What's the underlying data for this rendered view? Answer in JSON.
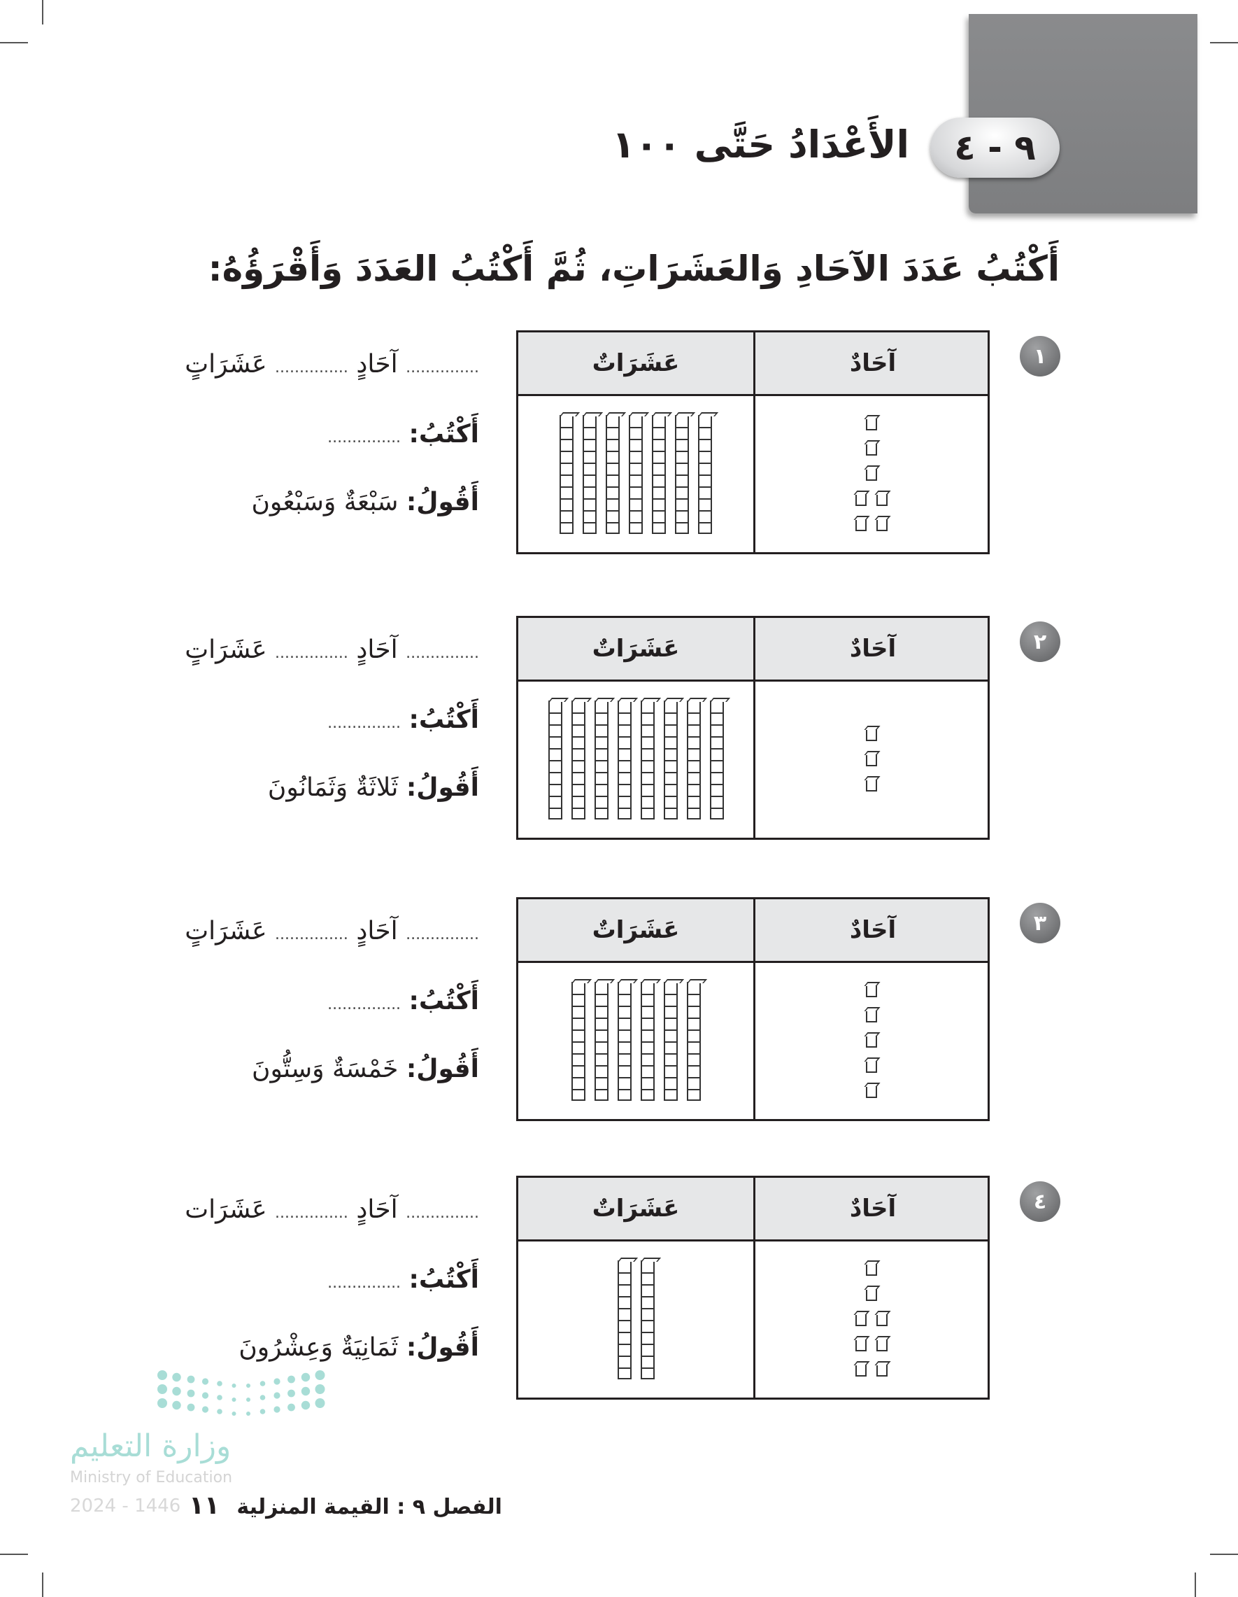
{
  "lesson": {
    "number": "٩ - ٤",
    "title": "الأَعْدَادُ حَتَّى ١٠٠"
  },
  "instruction": "أَكْتُبُ عَدَدَ الآحَادِ وَالعَشَرَاتِ، ثُمَّ أَكْتُبُ العَدَدَ وَأَقْرَؤُهُ:",
  "table_headers": {
    "ones": "آحَادٌ",
    "tens": "عَشَرَاتٌ"
  },
  "labels": {
    "ones": "آحَادٍ",
    "tens": "عَشَرَاتٍ",
    "tens_plain": "عَشَرَات",
    "write": "أَكْتُبُ:",
    "read": "أَقُولُ:",
    "blank": "..............."
  },
  "exercises": [
    {
      "number": "١",
      "tens": 7,
      "ones": 7,
      "read_text": "سَبْعَةٌ وَسَبْعُونَ"
    },
    {
      "number": "٢",
      "tens": 8,
      "ones": 3,
      "read_text": "ثَلاثَةٌ وَثَمَانُونَ"
    },
    {
      "number": "٣",
      "tens": 6,
      "ones": 5,
      "read_text": "خَمْسَةٌ وَسِتُّونَ"
    },
    {
      "number": "٤",
      "tens": 2,
      "ones": 8,
      "read_text": "ثَمَانِيَةٌ وَعِشْرُونَ"
    }
  ],
  "watermark": {
    "ministry_ar": "وزارة التعليم",
    "ministry_en": "Ministry of Education",
    "year": "2024 - 1446"
  },
  "footer": {
    "chapter": "الفصل ٩ : القيمة المنزلية",
    "page": "١١"
  },
  "colors": {
    "accent_gray": "#7d7e80",
    "header_fill": "#e6e7e8",
    "logo_teal": "#a8ddd6"
  }
}
